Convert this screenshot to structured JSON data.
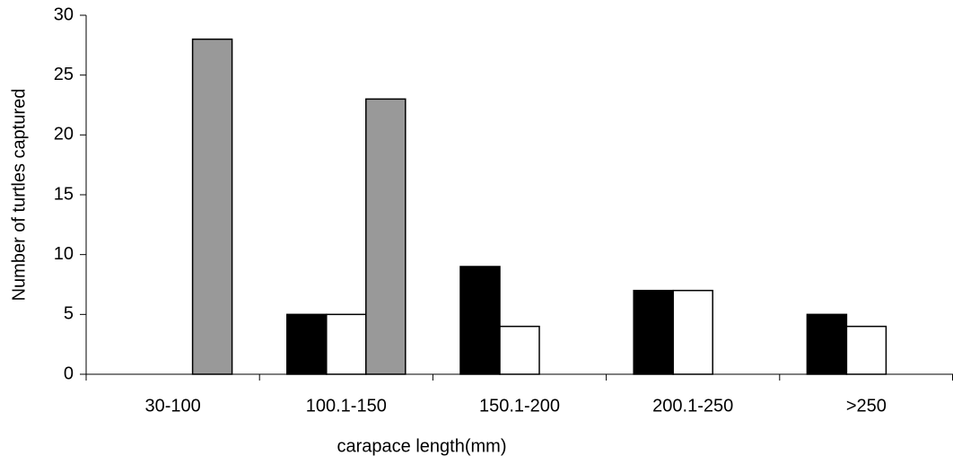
{
  "chart_data": {
    "type": "bar",
    "x_label": "carapace length(mm)",
    "y_label": "Number of turtles captured",
    "categories": [
      "30-100",
      "100.1-150",
      "150.1-200",
      "200.1-250",
      ">250"
    ],
    "series": [
      {
        "color": "#000000",
        "values": [
          0,
          5,
          9,
          7,
          5
        ]
      },
      {
        "color": "#ffffff",
        "values": [
          0,
          5,
          4,
          7,
          4
        ]
      },
      {
        "color": "#999999",
        "values": [
          28,
          23,
          0,
          0,
          0
        ]
      }
    ],
    "ylim": [
      0,
      30
    ],
    "yticks": [
      0,
      5,
      10,
      15,
      20,
      25,
      30
    ],
    "grid": false
  }
}
